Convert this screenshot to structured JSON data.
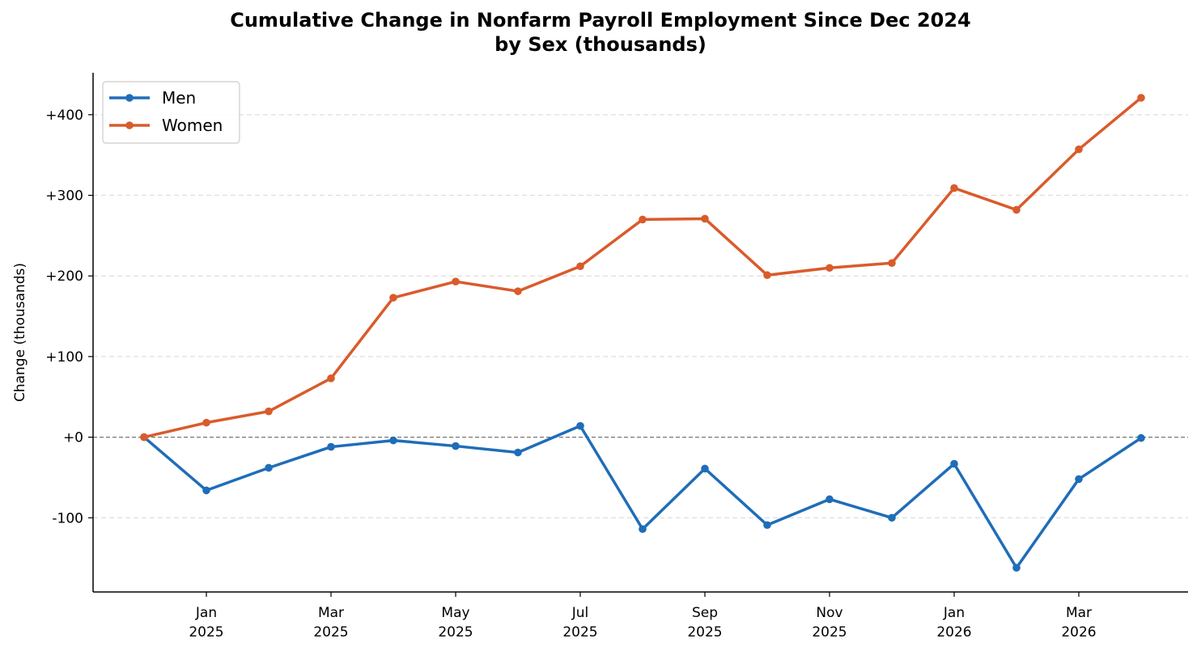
{
  "chart_data": {
    "type": "line",
    "title_line1": "Cumulative Change in Nonfarm Payroll Employment Since Dec 2024",
    "title_line2": "by Sex (thousands)",
    "ylabel": "Change (thousands)",
    "xlabel": "",
    "x": [
      "2024-12",
      "2025-01",
      "2025-02",
      "2025-03",
      "2025-04",
      "2025-05",
      "2025-06",
      "2025-07",
      "2025-08",
      "2025-09",
      "2025-10",
      "2025-11",
      "2025-12",
      "2026-01",
      "2026-02",
      "2026-03",
      "2026-04"
    ],
    "series": [
      {
        "name": "Men",
        "color": "#1f6db8",
        "values": [
          0,
          -66,
          -38,
          -12,
          -4,
          -11,
          -19,
          14,
          -114,
          -39,
          -109,
          -77,
          -100,
          -33,
          -162,
          -52,
          -1
        ]
      },
      {
        "name": "Women",
        "color": "#d95b2b",
        "values": [
          0,
          18,
          32,
          73,
          173,
          193,
          181,
          212,
          270,
          271,
          201,
          210,
          216,
          309,
          282,
          357,
          421
        ]
      }
    ],
    "ylim": [
      -192,
      452
    ],
    "yticks": [
      {
        "value": 400,
        "label": "+400"
      },
      {
        "value": 300,
        "label": "+300"
      },
      {
        "value": 200,
        "label": "+200"
      },
      {
        "value": 100,
        "label": "+100"
      },
      {
        "value": 0,
        "label": "+0"
      },
      {
        "value": -100,
        "label": "-100"
      }
    ],
    "xticks": [
      {
        "x": "2025-01",
        "month": "Jan",
        "year": "2025"
      },
      {
        "x": "2025-03",
        "month": "Mar",
        "year": "2025"
      },
      {
        "x": "2025-05",
        "month": "May",
        "year": "2025"
      },
      {
        "x": "2025-07",
        "month": "Jul",
        "year": "2025"
      },
      {
        "x": "2025-09",
        "month": "Sep",
        "year": "2025"
      },
      {
        "x": "2025-11",
        "month": "Nov",
        "year": "2025"
      },
      {
        "x": "2026-01",
        "month": "Jan",
        "year": "2026"
      },
      {
        "x": "2026-03",
        "month": "Mar",
        "year": "2026"
      }
    ],
    "grid": "horizontal-dashed",
    "zero_line": true,
    "legend_position": "top-left",
    "colors": {
      "grid": "#dddddd",
      "zero_line": "#777777",
      "axis": "#000000"
    }
  }
}
